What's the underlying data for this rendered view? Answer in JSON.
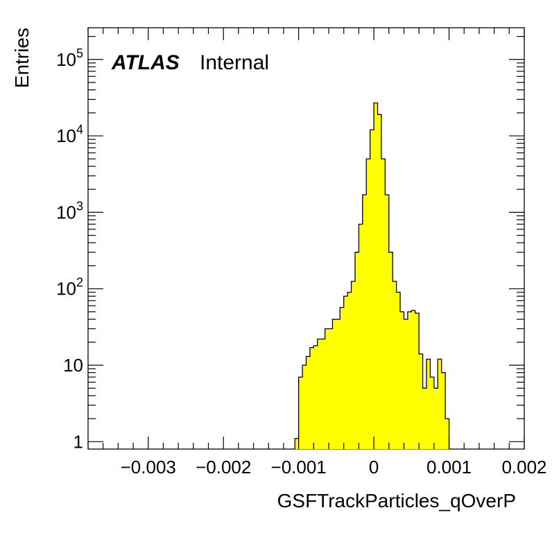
{
  "chart_data": {
    "type": "bar",
    "histogram": true,
    "xlabel": "GSFTrackParticles_qOverP",
    "ylabel": "Entries",
    "y_scale": "log",
    "xlim": [
      -0.0038,
      0.002
    ],
    "ylim": [
      0.8,
      260000
    ],
    "x_ticks": [
      {
        "value": -0.003,
        "label": "−0.003"
      },
      {
        "value": -0.002,
        "label": "−0.002"
      },
      {
        "value": -0.001,
        "label": "−0.001"
      },
      {
        "value": 0,
        "label": "0"
      },
      {
        "value": 0.001,
        "label": "0.001"
      },
      {
        "value": 0.002,
        "label": "0.002"
      }
    ],
    "y_ticks": [
      {
        "value": 1,
        "base": "1",
        "exp": ""
      },
      {
        "value": 10,
        "base": "10",
        "exp": ""
      },
      {
        "value": 100,
        "base": "10",
        "exp": "2"
      },
      {
        "value": 1000,
        "base": "10",
        "exp": "3"
      },
      {
        "value": 10000,
        "base": "10",
        "exp": "4"
      },
      {
        "value": 100000,
        "base": "10",
        "exp": "5"
      }
    ],
    "grid": false,
    "bin_width": 5e-05,
    "bin_low_edges": [
      -0.00105,
      -0.001,
      -0.00095,
      -0.0009,
      -0.00085,
      -0.0008,
      -0.00075,
      -0.0007,
      -0.00065,
      -0.0006,
      -0.00055,
      -0.0005,
      -0.00045,
      -0.0004,
      -0.00035,
      -0.0003,
      -0.00025,
      -0.0002,
      -0.00015,
      -0.0001,
      -5e-05,
      0,
      5e-05,
      0.0001,
      0.00015,
      0.0002,
      0.00025,
      0.0003,
      0.00035,
      0.0004,
      0.00045,
      0.0005,
      0.00055,
      0.0006,
      0.00065,
      0.0007,
      0.00075,
      0.0008,
      0.00085,
      0.0009,
      0.00095
    ],
    "values": [
      1.1,
      7,
      10,
      13,
      17,
      18,
      22,
      22,
      30,
      30,
      40,
      40,
      57,
      80,
      90,
      125,
      300,
      700,
      1700,
      5000,
      12000,
      27000,
      19000,
      5000,
      1700,
      300,
      125,
      90,
      50,
      40,
      50,
      52,
      48,
      14,
      5,
      12,
      7,
      5,
      12,
      8,
      2
    ]
  },
  "annotations": {
    "atlas_label": "ATLAS",
    "atlas_suffix": "Internal"
  },
  "colors": {
    "fill": "#ffff00",
    "line": "#000000",
    "frame": "#000000",
    "background": "#ffffff"
  }
}
